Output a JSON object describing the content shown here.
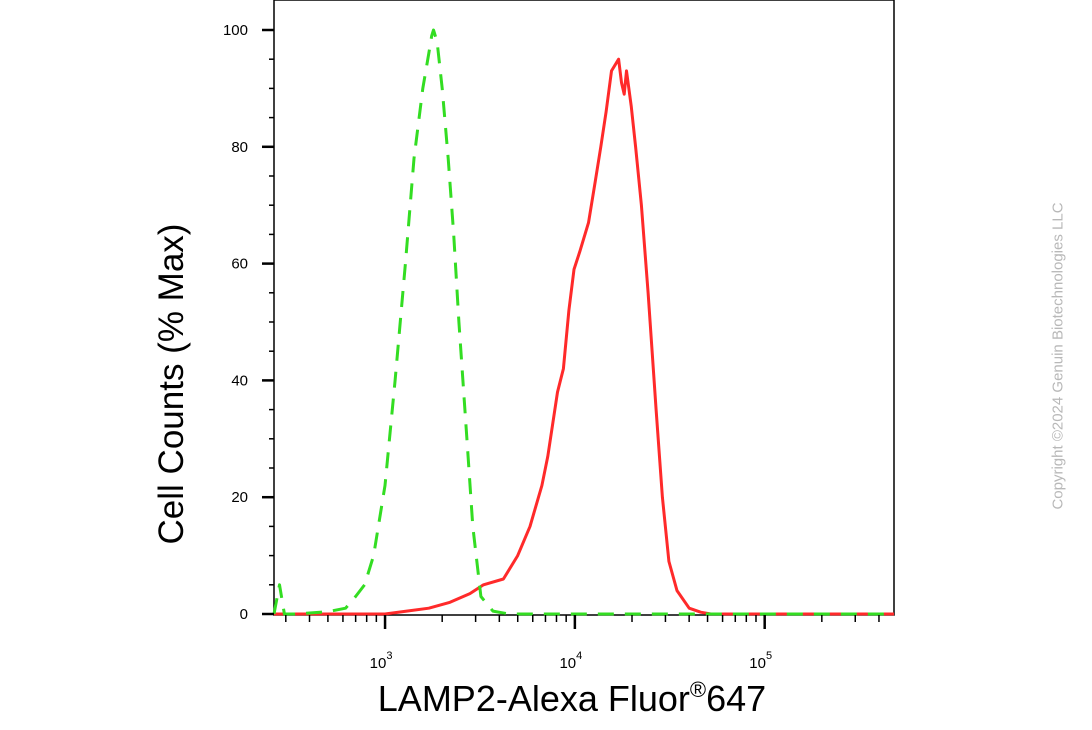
{
  "chart_data": {
    "type": "line",
    "xlabel": "LAMP2-Alexa Fluor",
    "xlabel_sup": "®",
    "xlabel_suffix": "647",
    "ylabel": "Cell Counts (% Max)",
    "x_scale": "log",
    "xlim": [
      260,
      480000
    ],
    "ylim": [
      0,
      100
    ],
    "yticks": [
      0,
      20,
      40,
      60,
      80,
      100
    ],
    "xticks": [
      {
        "value": 1000,
        "base": "10",
        "exp": "3"
      },
      {
        "value": 10000,
        "base": "10",
        "exp": "4"
      },
      {
        "value": 100000,
        "base": "10",
        "exp": "5"
      }
    ],
    "grid": false,
    "legend": "none",
    "series": [
      {
        "color": "#ff2a2a",
        "style": "solid",
        "x": [
          260,
          1000,
          1300,
          1700,
          2200,
          2800,
          3300,
          4200,
          5000,
          5800,
          6700,
          7200,
          8100,
          8700,
          9300,
          9900,
          10600,
          11800,
          12800,
          13700,
          14600,
          15600,
          17000,
          17600,
          18200,
          18700,
          19800,
          20900,
          22400,
          24300,
          26800,
          28900,
          31300,
          34500,
          40000,
          46000,
          52000,
          60000,
          80000,
          120000,
          480000
        ],
        "y": [
          0,
          0,
          0.5,
          1,
          2,
          3.5,
          5,
          6,
          10,
          15,
          22,
          27,
          38,
          42,
          52,
          59,
          62,
          67,
          74,
          80,
          86,
          93,
          95,
          91,
          89,
          93,
          87,
          80,
          70,
          55,
          35,
          20,
          9,
          4,
          1,
          0.3,
          0,
          0,
          0,
          0,
          0
        ]
      },
      {
        "color": "#33dd22",
        "style": "dashed",
        "x": [
          260,
          278,
          295,
          340,
          500,
          620,
          700,
          780,
          870,
          1000,
          1130,
          1280,
          1420,
          1580,
          1700,
          1760,
          1800,
          1880,
          2000,
          2150,
          2300,
          2450,
          2700,
          2900,
          3200,
          3700,
          4500,
          6000,
          20000,
          480000
        ],
        "y": [
          0,
          5,
          0,
          0,
          0.4,
          1,
          3,
          5,
          10,
          22,
          40,
          60,
          78,
          90,
          96,
          99,
          100,
          98,
          90,
          78,
          65,
          50,
          30,
          15,
          3,
          0.5,
          0,
          0,
          0,
          0
        ]
      }
    ]
  },
  "watermark": "Copyright ©2024 Genuin Biotechnologies LLC"
}
